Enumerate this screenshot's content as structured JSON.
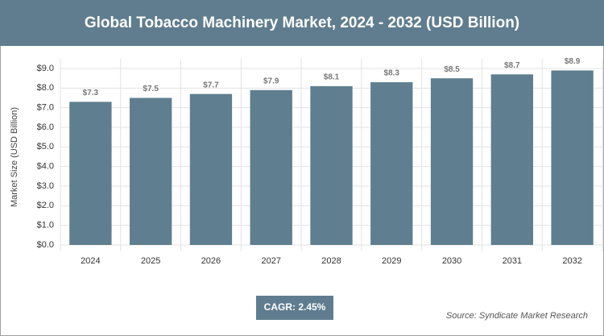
{
  "chart_data": {
    "type": "bar",
    "title": "Global Tobacco Machinery Market, 2024 - 2032 (USD Billion)",
    "y_label": "Market Size (USD Billion)",
    "categories": [
      "2024",
      "2025",
      "2026",
      "2027",
      "2028",
      "2029",
      "2030",
      "2031",
      "2032"
    ],
    "values": [
      7.3,
      7.5,
      7.7,
      7.9,
      8.1,
      8.3,
      8.5,
      8.7,
      8.9
    ],
    "value_labels": [
      "$7.3",
      "$7.5",
      "$7.7",
      "$7.9",
      "$8.1",
      "$8.3",
      "$8.5",
      "$8.7",
      "$8.9"
    ],
    "color": "#5f7f90",
    "ylim": [
      0,
      9
    ],
    "yticks": [
      {
        "value": 0,
        "label": "$0.0"
      },
      {
        "value": 1,
        "label": "$1.0"
      },
      {
        "value": 2,
        "label": "$2.0"
      },
      {
        "value": 3,
        "label": "$3.0"
      },
      {
        "value": 4,
        "label": "$4.0"
      },
      {
        "value": 5,
        "label": "$5.0"
      },
      {
        "value": 6,
        "label": "$6.0"
      },
      {
        "value": 7,
        "label": "$7.0"
      },
      {
        "value": 8,
        "label": "$8.0"
      },
      {
        "value": 9,
        "label": "$9.0"
      }
    ],
    "grid": true,
    "cagr": "CAGR: 2.45%",
    "source": "Source: Syndicate Market Research"
  }
}
